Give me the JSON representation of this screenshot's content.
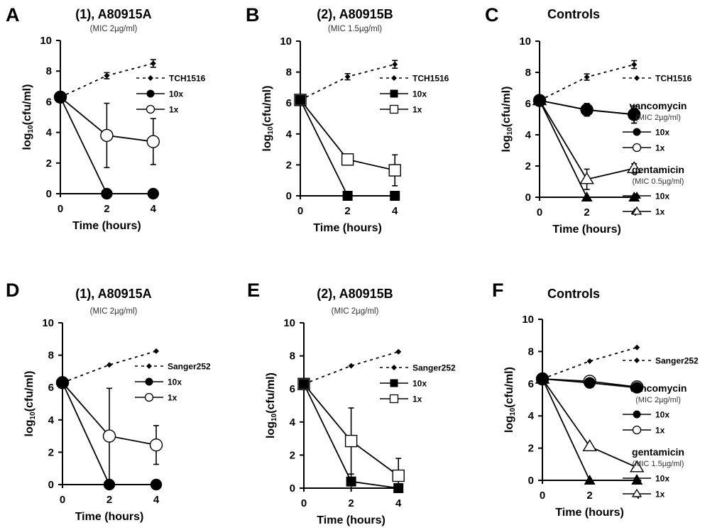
{
  "chart_data": [
    {
      "type": "line",
      "panel_letter": "A",
      "title": "(1), A80915A",
      "subtitle": "(MIC 2µg/ml)",
      "xlabel": "Time (hours)",
      "ylabel": "log10(cfu/ml)",
      "x": [
        0,
        2,
        4
      ],
      "xticks": [
        "0",
        "2",
        "4"
      ],
      "yticks": [
        "0",
        "2",
        "4",
        "6",
        "8",
        "10"
      ],
      "ylim": [
        0,
        10
      ],
      "grid": false,
      "legend_position": "right",
      "legend_groups": [],
      "series": [
        {
          "name": "TCH1516",
          "style": "dashed",
          "marker": "diamond",
          "values": [
            6.3,
            7.7,
            8.5
          ],
          "err": [
            0,
            0.2,
            0.25
          ]
        },
        {
          "name": "10x",
          "style": "solid",
          "marker": "circle-filled",
          "values": [
            6.3,
            0,
            0
          ],
          "err": [
            0,
            0,
            0
          ]
        },
        {
          "name": "1x",
          "style": "solid",
          "marker": "circle-open",
          "values": [
            6.3,
            3.8,
            3.4
          ],
          "err": [
            0,
            2.1,
            1.5
          ]
        }
      ]
    },
    {
      "type": "line",
      "panel_letter": "B",
      "title": "(2), A80915B",
      "subtitle": "(MIC 1.5µg/ml)",
      "xlabel": "Time (hours)",
      "ylabel": "log10(cfu/ml)",
      "x": [
        0,
        2,
        4
      ],
      "xticks": [
        "0",
        "2",
        "4"
      ],
      "yticks": [
        "0",
        "2",
        "4",
        "6",
        "8",
        "10"
      ],
      "ylim": [
        0,
        10
      ],
      "grid": false,
      "legend_position": "right",
      "legend_groups": [],
      "series": [
        {
          "name": "TCH1516",
          "style": "dashed",
          "marker": "diamond",
          "values": [
            6.2,
            7.7,
            8.5
          ],
          "err": [
            0,
            0.2,
            0.25
          ]
        },
        {
          "name": "10x",
          "style": "solid",
          "marker": "square-filled",
          "values": [
            6.2,
            0,
            0
          ],
          "err": [
            0,
            0,
            0
          ]
        },
        {
          "name": "1x",
          "style": "solid",
          "marker": "square-open",
          "values": [
            6.2,
            2.35,
            1.65
          ],
          "err": [
            0,
            0,
            1.0
          ]
        }
      ]
    },
    {
      "type": "line",
      "panel_letter": "C",
      "title": "Controls",
      "subtitle": "",
      "xlabel": "Time (hours)",
      "ylabel": "log10(cfu/ml)",
      "x": [
        0,
        2,
        4
      ],
      "xticks": [
        "0",
        "2",
        "4"
      ],
      "yticks": [
        "0",
        "2",
        "4",
        "6",
        "8",
        "10"
      ],
      "ylim": [
        0,
        10
      ],
      "grid": false,
      "legend_position": "right",
      "legend_groups": [
        {
          "title": "vancomycin",
          "subtitle": "(MIC 2µg/ml)",
          "before_series": 1
        },
        {
          "title": "gentamicin",
          "subtitle": "(MIC 0.5µg/ml)",
          "before_series": 3
        }
      ],
      "series": [
        {
          "name": "TCH1516",
          "style": "dashed",
          "marker": "diamond",
          "values": [
            6.2,
            7.7,
            8.5
          ],
          "err": [
            0,
            0.2,
            0.25
          ]
        },
        {
          "name": "10x",
          "style": "solid",
          "marker": "circle-filled",
          "values": [
            6.2,
            5.6,
            5.3
          ],
          "err": [
            0,
            0.4,
            0.55
          ]
        },
        {
          "name": "1x",
          "style": "solid",
          "marker": "circle-open",
          "values": [
            6.2,
            5.6,
            5.3
          ],
          "err": [
            0,
            0.4,
            0.55
          ]
        },
        {
          "name": "10x",
          "style": "solid",
          "marker": "triangle-filled",
          "values": [
            6.2,
            0,
            0
          ],
          "err": [
            0,
            0,
            0
          ]
        },
        {
          "name": "1x",
          "style": "solid",
          "marker": "triangle-open",
          "values": [
            6.2,
            1.15,
            1.85
          ],
          "err": [
            0,
            0.65,
            0.3
          ]
        }
      ]
    },
    {
      "type": "line",
      "panel_letter": "D",
      "title": "(1), A80915A",
      "subtitle": "(MIC 2µg/ml)",
      "xlabel": "Time (hours)",
      "ylabel": "log10(cfu/ml)",
      "x": [
        0,
        2,
        4
      ],
      "xticks": [
        "0",
        "2",
        "4"
      ],
      "yticks": [
        "0",
        "2",
        "4",
        "6",
        "8",
        "10"
      ],
      "ylim": [
        0,
        10
      ],
      "grid": false,
      "legend_position": "right",
      "legend_groups": [],
      "series": [
        {
          "name": "Sanger252",
          "style": "dashed",
          "marker": "diamond",
          "values": [
            6.3,
            7.4,
            8.25
          ],
          "err": [
            0,
            0,
            0
          ]
        },
        {
          "name": "10x",
          "style": "solid",
          "marker": "circle-filled",
          "values": [
            6.3,
            0,
            0
          ],
          "err": [
            0,
            0,
            0
          ]
        },
        {
          "name": "1x",
          "style": "solid",
          "marker": "circle-open",
          "values": [
            6.3,
            3.0,
            2.45
          ],
          "err": [
            0,
            2.95,
            1.2
          ]
        }
      ]
    },
    {
      "type": "line",
      "panel_letter": "E",
      "title": "(2), A80915B",
      "subtitle": "(MIC 2µg/ml)",
      "xlabel": "Time (hours)",
      "ylabel": "log10(cfu/ml)",
      "x": [
        0,
        2,
        4
      ],
      "xticks": [
        "0",
        "2",
        "4"
      ],
      "yticks": [
        "0",
        "2",
        "4",
        "6",
        "8",
        "10"
      ],
      "ylim": [
        0,
        10
      ],
      "grid": false,
      "legend_position": "right",
      "legend_groups": [],
      "series": [
        {
          "name": "Sanger252",
          "style": "dashed",
          "marker": "diamond",
          "values": [
            6.3,
            7.4,
            8.25
          ],
          "err": [
            0,
            0,
            0
          ]
        },
        {
          "name": "10x",
          "style": "solid",
          "marker": "square-filled",
          "values": [
            6.3,
            0.4,
            0
          ],
          "err": [
            0,
            0.45,
            0
          ]
        },
        {
          "name": "1x",
          "style": "solid",
          "marker": "square-open",
          "values": [
            6.3,
            2.85,
            0.75
          ],
          "err": [
            0,
            2.0,
            1.05
          ]
        }
      ]
    },
    {
      "type": "line",
      "panel_letter": "F",
      "title": "Controls",
      "subtitle": "",
      "xlabel": "Time (hours)",
      "ylabel": "log10(cfu/ml)",
      "x": [
        0,
        2,
        4
      ],
      "xticks": [
        "0",
        "2",
        "4"
      ],
      "yticks": [
        "0",
        "2",
        "4",
        "6",
        "8",
        "10"
      ],
      "ylim": [
        0,
        10
      ],
      "grid": false,
      "legend_position": "right",
      "legend_groups": [
        {
          "title": "vancomycin",
          "subtitle": "(MIC 2µg/ml)",
          "before_series": 1
        },
        {
          "title": "gentamicin",
          "subtitle": "(MIC 1.5µg/ml)",
          "before_series": 3
        }
      ],
      "series": [
        {
          "name": "Sanger252",
          "style": "dashed",
          "marker": "diamond",
          "values": [
            6.3,
            7.4,
            8.25
          ],
          "err": [
            0,
            0,
            0
          ]
        },
        {
          "name": "10x",
          "style": "solid",
          "marker": "circle-filled",
          "values": [
            6.3,
            6.05,
            5.75
          ],
          "err": [
            0,
            0,
            0
          ]
        },
        {
          "name": "1x",
          "style": "solid",
          "marker": "circle-open",
          "values": [
            6.3,
            6.15,
            5.8
          ],
          "err": [
            0,
            0,
            0
          ]
        },
        {
          "name": "10x",
          "style": "solid",
          "marker": "triangle-filled",
          "values": [
            6.3,
            0,
            0
          ],
          "err": [
            0,
            0,
            0
          ]
        },
        {
          "name": "1x",
          "style": "solid",
          "marker": "triangle-open",
          "values": [
            6.3,
            2.1,
            0.8
          ],
          "err": [
            0,
            0,
            0
          ]
        }
      ]
    }
  ]
}
